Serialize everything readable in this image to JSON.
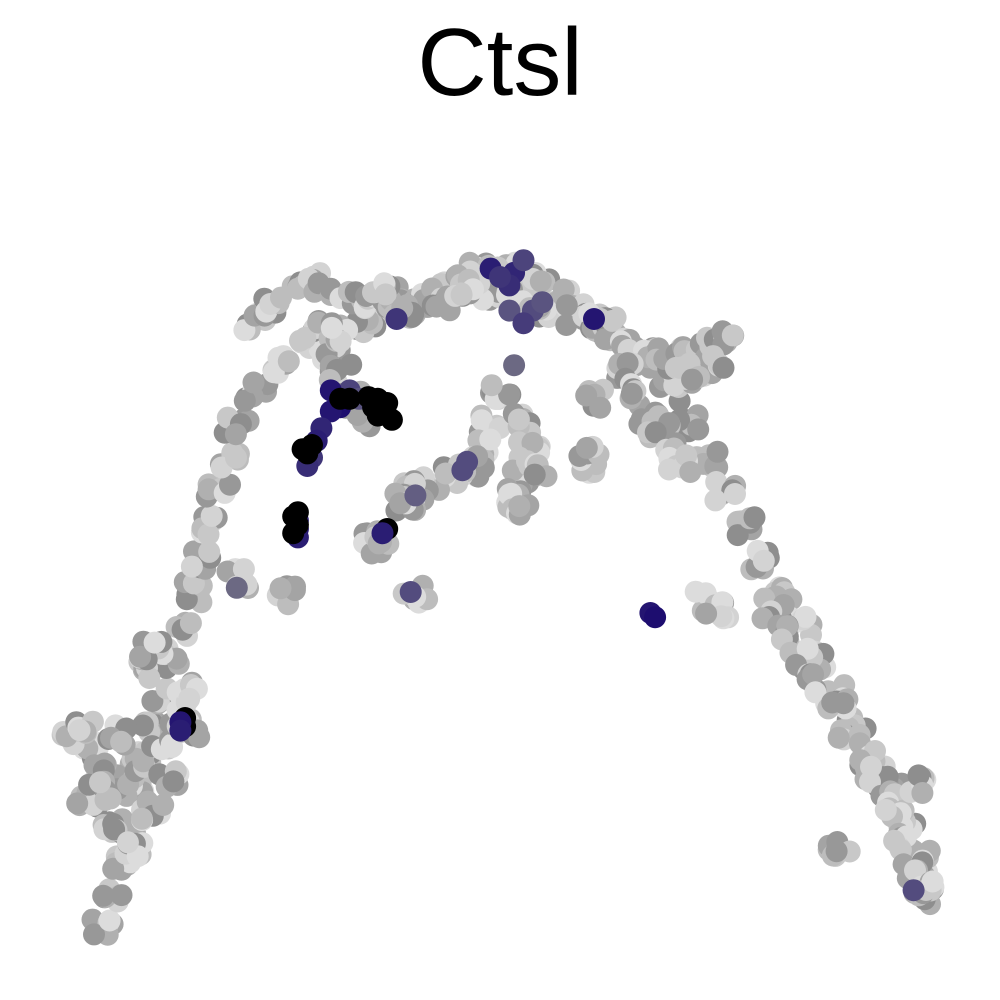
{
  "chart_data": {
    "type": "scatter",
    "title": "Ctsl",
    "xlabel": "",
    "ylabel": "",
    "grid": false,
    "axes_visible": false,
    "xlim": [
      0,
      100
    ],
    "ylim": [
      0,
      100
    ],
    "color_scale": {
      "low": "#e0e0e0",
      "mid": "#888888",
      "high": "#1a0a6e",
      "max": "#000000"
    },
    "background_trajectory": [
      [
        7.5,
        5
      ],
      [
        8.5,
        9
      ],
      [
        9.5,
        13
      ],
      [
        10,
        17
      ],
      [
        11,
        21
      ],
      [
        12,
        25
      ],
      [
        13,
        29
      ],
      [
        14,
        33
      ],
      [
        15,
        37
      ],
      [
        16,
        41
      ],
      [
        17,
        45
      ],
      [
        18,
        49
      ],
      [
        19,
        53
      ],
      [
        20,
        57
      ],
      [
        21,
        61
      ],
      [
        22,
        65
      ],
      [
        24,
        69
      ],
      [
        27,
        72
      ],
      [
        31,
        75
      ],
      [
        36,
        77
      ],
      [
        41,
        79
      ],
      [
        45,
        81
      ],
      [
        48,
        83
      ],
      [
        51,
        84
      ],
      [
        54,
        82
      ],
      [
        57,
        80
      ],
      [
        61,
        77
      ],
      [
        65,
        73
      ],
      [
        68,
        69
      ],
      [
        70,
        65
      ],
      [
        72,
        61
      ],
      [
        74,
        57
      ],
      [
        76,
        53
      ],
      [
        78,
        49
      ],
      [
        80,
        45
      ],
      [
        82,
        41
      ],
      [
        84,
        37
      ],
      [
        86,
        33
      ],
      [
        88,
        29
      ],
      [
        90,
        25
      ],
      [
        92,
        21
      ],
      [
        93.5,
        17
      ],
      [
        94.5,
        13
      ],
      [
        95,
        9
      ],
      [
        6,
        26
      ],
      [
        8,
        24
      ],
      [
        10,
        22
      ],
      [
        12,
        24
      ],
      [
        14,
        27
      ],
      [
        16,
        30
      ],
      [
        17,
        33
      ],
      [
        6,
        20
      ],
      [
        9,
        17
      ],
      [
        11,
        14
      ],
      [
        13,
        19
      ],
      [
        15,
        23
      ],
      [
        17,
        29
      ],
      [
        46,
        82
      ],
      [
        49,
        81
      ],
      [
        52,
        80
      ],
      [
        55,
        79
      ],
      [
        58,
        78
      ],
      [
        60,
        77
      ],
      [
        62,
        76
      ],
      [
        64,
        74
      ],
      [
        66,
        73
      ],
      [
        68,
        72
      ],
      [
        70,
        73
      ],
      [
        72,
        74
      ],
      [
        74,
        75
      ],
      [
        73,
        72
      ],
      [
        70,
        71
      ],
      [
        50,
        69
      ],
      [
        49,
        65
      ],
      [
        48,
        62
      ],
      [
        47,
        60
      ],
      [
        45,
        59
      ],
      [
        43,
        58
      ],
      [
        41,
        57
      ],
      [
        40,
        56
      ],
      [
        52,
        65
      ],
      [
        53,
        62
      ],
      [
        52,
        59
      ],
      [
        52,
        56
      ],
      [
        60,
        60
      ],
      [
        63,
        71
      ],
      [
        64,
        68
      ],
      [
        66,
        66
      ],
      [
        67,
        64
      ],
      [
        68,
        62
      ],
      [
        69,
        60
      ],
      [
        24,
        77
      ],
      [
        26,
        79
      ],
      [
        28,
        81
      ],
      [
        30,
        82
      ],
      [
        33,
        81
      ],
      [
        35,
        80
      ],
      [
        37,
        79
      ],
      [
        39,
        80
      ],
      [
        42,
        80
      ],
      [
        44,
        79
      ],
      [
        30,
        76
      ],
      [
        32,
        74
      ],
      [
        33,
        71
      ],
      [
        34,
        68
      ],
      [
        35,
        66
      ],
      [
        72,
        44
      ],
      [
        73,
        43
      ],
      [
        79,
        43
      ],
      [
        80,
        40
      ],
      [
        82,
        37
      ],
      [
        84,
        34
      ],
      [
        86,
        31
      ],
      [
        87,
        28
      ],
      [
        89,
        25
      ],
      [
        90,
        23
      ],
      [
        91,
        20
      ],
      [
        92,
        18
      ],
      [
        93,
        15
      ],
      [
        94,
        12
      ],
      [
        95,
        9.5
      ],
      [
        86,
        14
      ],
      [
        94,
        22
      ],
      [
        4.5,
        28
      ],
      [
        5.5,
        28.5
      ],
      [
        7.5,
        21.5
      ],
      [
        9.5,
        28
      ],
      [
        12.5,
        36
      ],
      [
        13,
        38
      ],
      [
        27,
        44.5
      ],
      [
        22,
        46.5
      ],
      [
        39.5,
        55.5
      ],
      [
        36.5,
        51
      ],
      [
        37,
        50.5
      ],
      [
        41,
        45
      ],
      [
        51.5,
        55.5
      ],
      [
        54,
        60
      ],
      [
        59.5,
        61
      ],
      [
        60,
        68
      ],
      [
        33,
        76
      ],
      [
        37,
        81.5
      ],
      [
        40,
        78
      ],
      [
        46,
        81
      ]
    ],
    "highlighted_points": [
      [
        49,
        83.5,
        0.85
      ],
      [
        51.5,
        83,
        0.8
      ],
      [
        51,
        81.5,
        0.75
      ],
      [
        50,
        82.5,
        0.7
      ],
      [
        52.5,
        84.5,
        0.6
      ],
      [
        53.5,
        78.5,
        0.55
      ],
      [
        51,
        78.5,
        0.5
      ],
      [
        54.5,
        79.5,
        0.5
      ],
      [
        60,
        77.5,
        0.9
      ],
      [
        39,
        77.5,
        0.7
      ],
      [
        34,
        69,
        0.6
      ],
      [
        32,
        69,
        0.9
      ],
      [
        35,
        68,
        0.5
      ],
      [
        33,
        67,
        0.95
      ],
      [
        32,
        66.5,
        0.9
      ],
      [
        37,
        68,
        1.0
      ],
      [
        38,
        67.5,
        1.0
      ],
      [
        36.5,
        67,
        1.0
      ],
      [
        38,
        66,
        1.0
      ],
      [
        37,
        66,
        1.0
      ],
      [
        38.5,
        65.5,
        1.0
      ],
      [
        36,
        68.2,
        1.0
      ],
      [
        34,
        68,
        1.0
      ],
      [
        33,
        68,
        1.0
      ],
      [
        37.5,
        67,
        1.0
      ],
      [
        31,
        64.5,
        0.8
      ],
      [
        30.5,
        63,
        0.85
      ],
      [
        29.5,
        62,
        0.8
      ],
      [
        30,
        61,
        0.7
      ],
      [
        29.5,
        60,
        0.75
      ],
      [
        29,
        62,
        1.0
      ],
      [
        29.5,
        61.5,
        1.0
      ],
      [
        30,
        62.5,
        1.0
      ],
      [
        28.5,
        53.5,
        0.8
      ],
      [
        28.5,
        52.5,
        0.9
      ],
      [
        28.5,
        51.5,
        0.85
      ],
      [
        28,
        54,
        1.0
      ],
      [
        28.5,
        53,
        1.0
      ],
      [
        28,
        52,
        1.0
      ],
      [
        28.5,
        54.5,
        1.0
      ],
      [
        38,
        52.5,
        1.0
      ],
      [
        37.5,
        52,
        0.85
      ],
      [
        46.5,
        60.5,
        0.55
      ],
      [
        46,
        59.5,
        0.55
      ],
      [
        40.5,
        45,
        0.55
      ],
      [
        66,
        42.5,
        0.9
      ],
      [
        66.5,
        42,
        0.95
      ],
      [
        16.5,
        29,
        1.0
      ],
      [
        16.5,
        30,
        1.0
      ],
      [
        16,
        29.5,
        0.9
      ],
      [
        16,
        28.5,
        0.85
      ],
      [
        52.5,
        77,
        0.65
      ],
      [
        51.5,
        72,
        0.3
      ],
      [
        41,
        56.5,
        0.4
      ],
      [
        22,
        45.5,
        0.3
      ],
      [
        94,
        9.5,
        0.55
      ]
    ]
  }
}
